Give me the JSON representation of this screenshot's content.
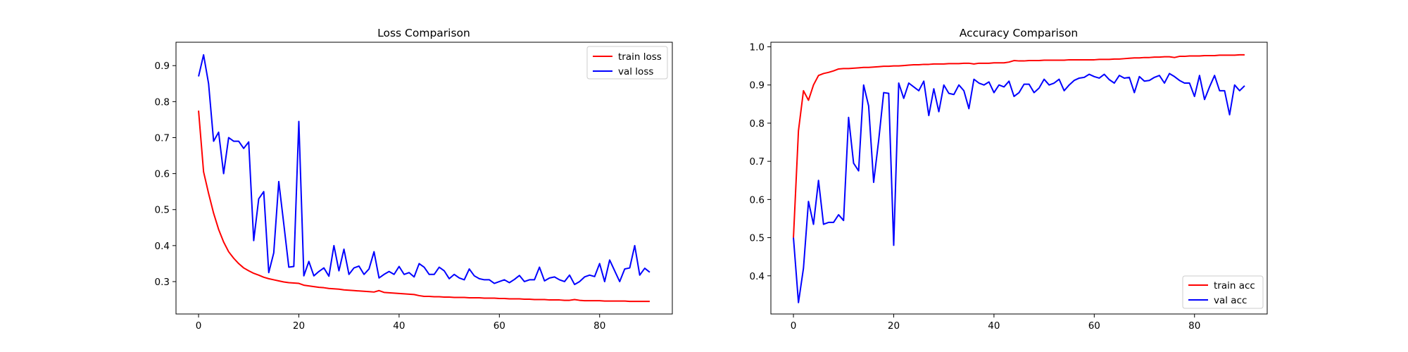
{
  "chart_data": [
    {
      "type": "line",
      "title": "Loss Comparison",
      "xlabel": "",
      "ylabel": "",
      "xlim": [
        -4.5,
        94.5
      ],
      "ylim": [
        0.21,
        0.965
      ],
      "xticks": [
        0,
        20,
        40,
        60,
        80
      ],
      "yticks": [
        0.3,
        0.4,
        0.5,
        0.6,
        0.7,
        0.8,
        0.9
      ],
      "grid": false,
      "legend_position": "top-right",
      "series": [
        {
          "name": "train loss",
          "color": "#ff0000",
          "x": [
            0,
            1,
            2,
            3,
            4,
            5,
            6,
            7,
            8,
            9,
            10,
            11,
            12,
            13,
            14,
            15,
            16,
            17,
            18,
            19,
            20,
            21,
            22,
            23,
            24,
            25,
            26,
            27,
            28,
            29,
            30,
            31,
            32,
            33,
            34,
            35,
            36,
            37,
            38,
            39,
            40,
            41,
            42,
            43,
            44,
            45,
            46,
            47,
            48,
            49,
            50,
            51,
            52,
            53,
            54,
            55,
            56,
            57,
            58,
            59,
            60,
            61,
            62,
            63,
            64,
            65,
            66,
            67,
            68,
            69,
            70,
            71,
            72,
            73,
            74,
            75,
            76,
            77,
            78,
            79,
            80,
            81,
            82,
            83,
            84,
            85,
            86,
            87,
            88,
            89,
            90
          ],
          "y": [
            0.775,
            0.605,
            0.545,
            0.49,
            0.445,
            0.41,
            0.383,
            0.365,
            0.35,
            0.338,
            0.33,
            0.323,
            0.318,
            0.312,
            0.308,
            0.305,
            0.302,
            0.299,
            0.297,
            0.296,
            0.295,
            0.29,
            0.288,
            0.286,
            0.284,
            0.283,
            0.281,
            0.28,
            0.279,
            0.277,
            0.276,
            0.275,
            0.274,
            0.273,
            0.272,
            0.271,
            0.275,
            0.27,
            0.269,
            0.268,
            0.267,
            0.266,
            0.265,
            0.264,
            0.261,
            0.259,
            0.259,
            0.258,
            0.258,
            0.257,
            0.257,
            0.256,
            0.256,
            0.256,
            0.255,
            0.255,
            0.255,
            0.254,
            0.254,
            0.254,
            0.253,
            0.253,
            0.252,
            0.252,
            0.252,
            0.251,
            0.251,
            0.25,
            0.25,
            0.25,
            0.249,
            0.249,
            0.249,
            0.248,
            0.248,
            0.25,
            0.248,
            0.247,
            0.247,
            0.247,
            0.247,
            0.246,
            0.246,
            0.246,
            0.246,
            0.246,
            0.245,
            0.245,
            0.245,
            0.245,
            0.245
          ]
        },
        {
          "name": "val loss",
          "color": "#0000ff",
          "x": [
            0,
            1,
            2,
            3,
            4,
            5,
            6,
            7,
            8,
            9,
            10,
            11,
            12,
            13,
            14,
            15,
            16,
            17,
            18,
            19,
            20,
            21,
            22,
            23,
            24,
            25,
            26,
            27,
            28,
            29,
            30,
            31,
            32,
            33,
            34,
            35,
            36,
            37,
            38,
            39,
            40,
            41,
            42,
            43,
            44,
            45,
            46,
            47,
            48,
            49,
            50,
            51,
            52,
            53,
            54,
            55,
            56,
            57,
            58,
            59,
            60,
            61,
            62,
            63,
            64,
            65,
            66,
            67,
            68,
            69,
            70,
            71,
            72,
            73,
            74,
            75,
            76,
            77,
            78,
            79,
            80,
            81,
            82,
            83,
            84,
            85,
            86,
            87,
            88,
            89,
            90
          ],
          "y": [
            0.87,
            0.93,
            0.85,
            0.69,
            0.715,
            0.6,
            0.7,
            0.69,
            0.69,
            0.67,
            0.688,
            0.414,
            0.53,
            0.55,
            0.325,
            0.38,
            0.578,
            0.46,
            0.34,
            0.342,
            0.745,
            0.316,
            0.356,
            0.316,
            0.328,
            0.338,
            0.315,
            0.4,
            0.33,
            0.39,
            0.32,
            0.338,
            0.343,
            0.32,
            0.335,
            0.383,
            0.31,
            0.32,
            0.328,
            0.32,
            0.342,
            0.32,
            0.325,
            0.313,
            0.35,
            0.34,
            0.32,
            0.32,
            0.34,
            0.33,
            0.308,
            0.32,
            0.31,
            0.305,
            0.335,
            0.316,
            0.308,
            0.305,
            0.305,
            0.295,
            0.3,
            0.305,
            0.297,
            0.306,
            0.317,
            0.3,
            0.305,
            0.305,
            0.34,
            0.302,
            0.31,
            0.313,
            0.305,
            0.3,
            0.318,
            0.292,
            0.3,
            0.313,
            0.318,
            0.314,
            0.35,
            0.3,
            0.36,
            0.33,
            0.3,
            0.335,
            0.338,
            0.4,
            0.318,
            0.337,
            0.326
          ]
        }
      ]
    },
    {
      "type": "line",
      "title": "Accuracy Comparison",
      "xlabel": "",
      "ylabel": "",
      "xlim": [
        -4.5,
        94.5
      ],
      "ylim": [
        0.3,
        1.012
      ],
      "xticks": [
        0,
        20,
        40,
        60,
        80
      ],
      "yticks": [
        0.4,
        0.5,
        0.6,
        0.7,
        0.8,
        0.9,
        1.0
      ],
      "grid": false,
      "legend_position": "bottom-right",
      "series": [
        {
          "name": "train acc",
          "color": "#ff0000",
          "x": [
            0,
            1,
            2,
            3,
            4,
            5,
            6,
            7,
            8,
            9,
            10,
            11,
            12,
            13,
            14,
            15,
            16,
            17,
            18,
            19,
            20,
            21,
            22,
            23,
            24,
            25,
            26,
            27,
            28,
            29,
            30,
            31,
            32,
            33,
            34,
            35,
            36,
            37,
            38,
            39,
            40,
            41,
            42,
            43,
            44,
            45,
            46,
            47,
            48,
            49,
            50,
            51,
            52,
            53,
            54,
            55,
            56,
            57,
            58,
            59,
            60,
            61,
            62,
            63,
            64,
            65,
            66,
            67,
            68,
            69,
            70,
            71,
            72,
            73,
            74,
            75,
            76,
            77,
            78,
            79,
            80,
            81,
            82,
            83,
            84,
            85,
            86,
            87,
            88,
            89,
            90
          ],
          "y": [
            0.5,
            0.78,
            0.885,
            0.86,
            0.9,
            0.925,
            0.93,
            0.933,
            0.937,
            0.942,
            0.943,
            0.943,
            0.944,
            0.945,
            0.946,
            0.946,
            0.947,
            0.948,
            0.949,
            0.949,
            0.95,
            0.95,
            0.951,
            0.952,
            0.953,
            0.953,
            0.954,
            0.954,
            0.955,
            0.955,
            0.955,
            0.956,
            0.956,
            0.956,
            0.957,
            0.957,
            0.955,
            0.957,
            0.957,
            0.957,
            0.958,
            0.958,
            0.958,
            0.96,
            0.964,
            0.963,
            0.963,
            0.964,
            0.964,
            0.964,
            0.965,
            0.965,
            0.965,
            0.965,
            0.965,
            0.966,
            0.966,
            0.966,
            0.966,
            0.966,
            0.966,
            0.967,
            0.967,
            0.967,
            0.968,
            0.968,
            0.969,
            0.97,
            0.971,
            0.971,
            0.972,
            0.972,
            0.973,
            0.973,
            0.974,
            0.974,
            0.972,
            0.975,
            0.975,
            0.976,
            0.976,
            0.976,
            0.977,
            0.977,
            0.977,
            0.978,
            0.978,
            0.978,
            0.978,
            0.979,
            0.979
          ]
        },
        {
          "name": "val acc",
          "color": "#0000ff",
          "x": [
            0,
            1,
            2,
            3,
            4,
            5,
            6,
            7,
            8,
            9,
            10,
            11,
            12,
            13,
            14,
            15,
            16,
            17,
            18,
            19,
            20,
            21,
            22,
            23,
            24,
            25,
            26,
            27,
            28,
            29,
            30,
            31,
            32,
            33,
            34,
            35,
            36,
            37,
            38,
            39,
            40,
            41,
            42,
            43,
            44,
            45,
            46,
            47,
            48,
            49,
            50,
            51,
            52,
            53,
            54,
            55,
            56,
            57,
            58,
            59,
            60,
            61,
            62,
            63,
            64,
            65,
            66,
            67,
            68,
            69,
            70,
            71,
            72,
            73,
            74,
            75,
            76,
            77,
            78,
            79,
            80,
            81,
            82,
            83,
            84,
            85,
            86,
            87,
            88,
            89,
            90
          ],
          "y": [
            0.5,
            0.33,
            0.42,
            0.595,
            0.535,
            0.65,
            0.535,
            0.54,
            0.54,
            0.56,
            0.545,
            0.815,
            0.695,
            0.675,
            0.9,
            0.845,
            0.645,
            0.755,
            0.88,
            0.878,
            0.48,
            0.905,
            0.865,
            0.905,
            0.895,
            0.885,
            0.91,
            0.82,
            0.89,
            0.83,
            0.9,
            0.878,
            0.875,
            0.9,
            0.885,
            0.838,
            0.915,
            0.905,
            0.9,
            0.908,
            0.88,
            0.9,
            0.895,
            0.91,
            0.87,
            0.88,
            0.902,
            0.902,
            0.88,
            0.892,
            0.915,
            0.9,
            0.905,
            0.915,
            0.885,
            0.9,
            0.912,
            0.918,
            0.92,
            0.928,
            0.922,
            0.918,
            0.928,
            0.914,
            0.905,
            0.925,
            0.918,
            0.92,
            0.88,
            0.922,
            0.91,
            0.912,
            0.92,
            0.925,
            0.905,
            0.93,
            0.922,
            0.912,
            0.905,
            0.905,
            0.87,
            0.925,
            0.862,
            0.895,
            0.925,
            0.885,
            0.885,
            0.822,
            0.9,
            0.885,
            0.898
          ]
        }
      ]
    }
  ]
}
